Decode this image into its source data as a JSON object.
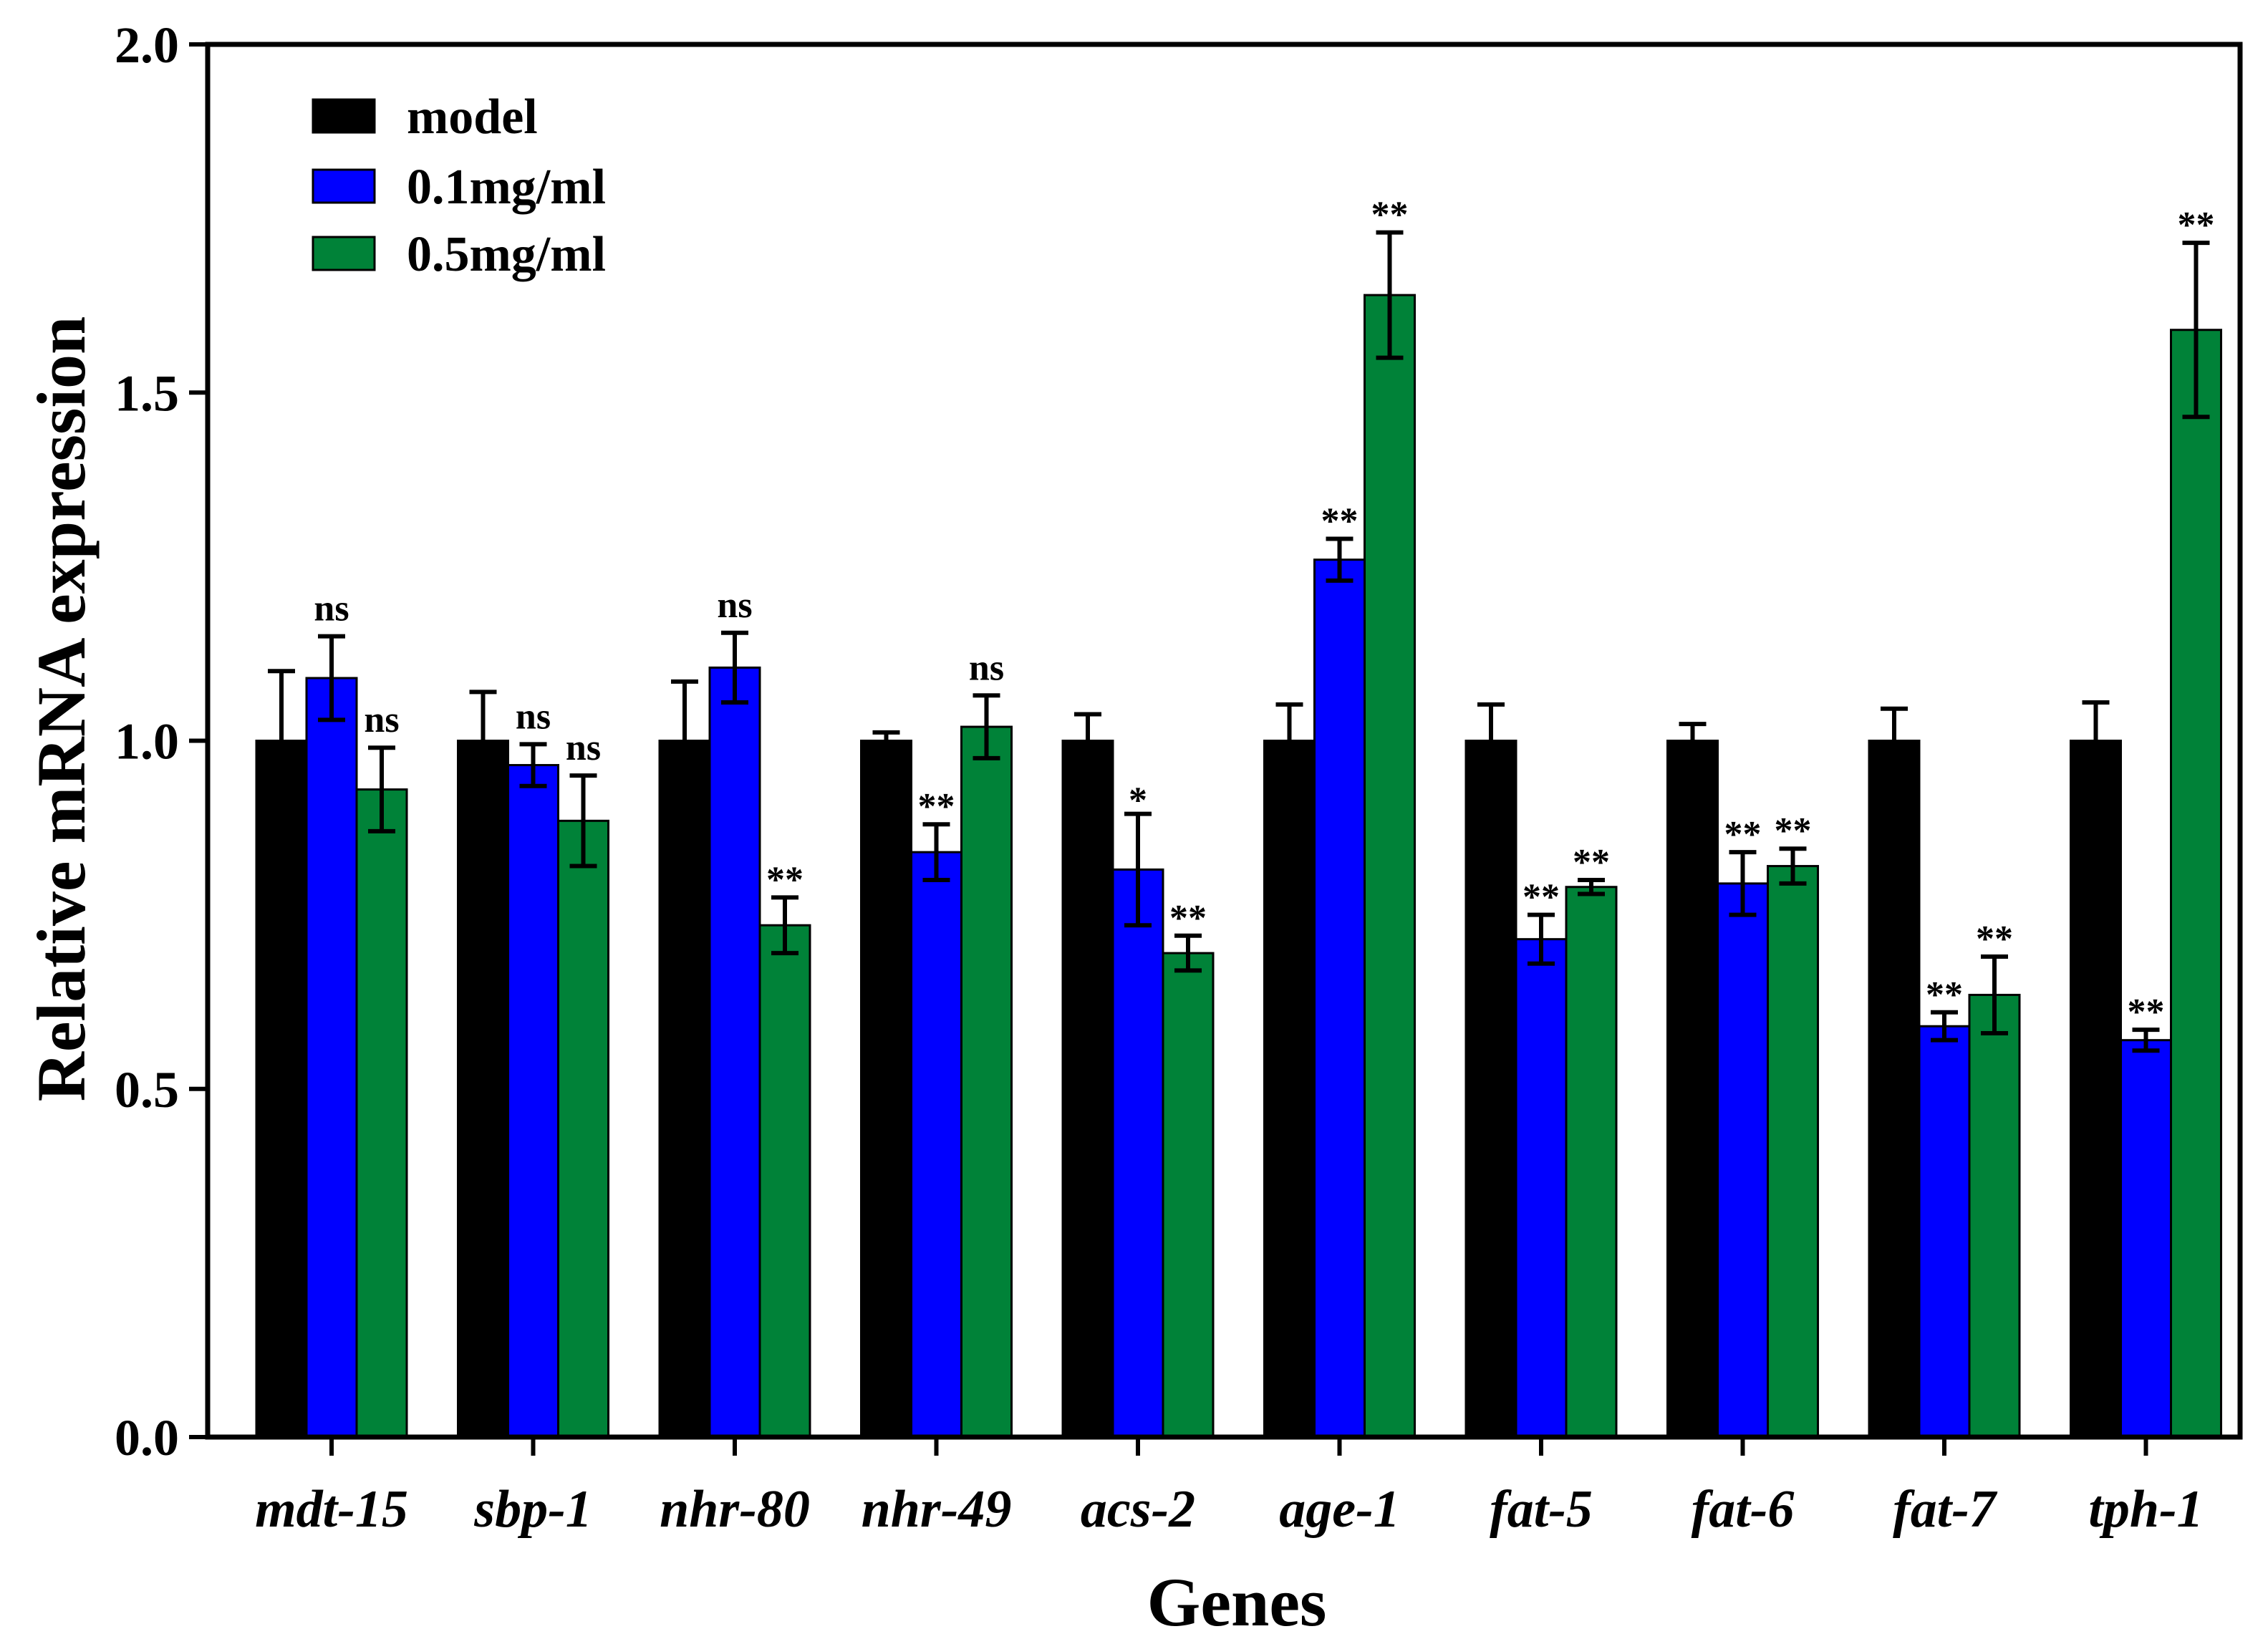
{
  "chart_data": {
    "type": "bar",
    "title": "",
    "xlabel": "Genes",
    "ylabel": "Relative mRNA expression",
    "ylim": [
      0,
      2.0
    ],
    "yticks": [
      "0.0",
      "0.5",
      "1.0",
      "1.5",
      "2.0"
    ],
    "grid": false,
    "legend_position": "top-left",
    "categories": [
      "mdt-15",
      "sbp-1",
      "nhr-80",
      "nhr-49",
      "acs-2",
      "age-1",
      "fat-5",
      "fat-6",
      "fat-7",
      "tph-1"
    ],
    "series": [
      {
        "name": "model",
        "color": "#000000",
        "values": [
          1.0,
          1.0,
          1.0,
          1.0,
          1.0,
          1.0,
          1.0,
          1.0,
          1.0,
          1.0
        ],
        "errors": [
          0.1,
          0.07,
          0.085,
          0.012,
          0.038,
          0.052,
          0.052,
          0.024,
          0.046,
          0.055
        ],
        "significance": [
          "",
          "",
          "",
          "",
          "",
          "",
          "",
          "",
          "",
          ""
        ]
      },
      {
        "name": "0.1mg/ml",
        "color": "#0000FF",
        "values": [
          1.09,
          0.965,
          1.105,
          0.84,
          0.815,
          1.26,
          0.715,
          0.795,
          0.59,
          0.57
        ],
        "errors": [
          0.06,
          0.03,
          0.05,
          0.04,
          0.08,
          0.03,
          0.035,
          0.045,
          0.02,
          0.015
        ],
        "significance": [
          "ns",
          "ns",
          "ns",
          "**",
          "*",
          "**",
          "**",
          "**",
          "**",
          "**"
        ]
      },
      {
        "name": "0.5mg/ml",
        "color": "#008238",
        "values": [
          0.93,
          0.885,
          0.735,
          1.02,
          0.695,
          1.64,
          0.79,
          0.82,
          0.635,
          1.59
        ],
        "errors": [
          0.06,
          0.065,
          0.04,
          0.045,
          0.025,
          0.09,
          0.01,
          0.025,
          0.055,
          0.125
        ],
        "significance": [
          "ns",
          "ns",
          "**",
          "ns",
          "**",
          "**",
          "**",
          "**",
          "**",
          "**"
        ]
      }
    ]
  }
}
